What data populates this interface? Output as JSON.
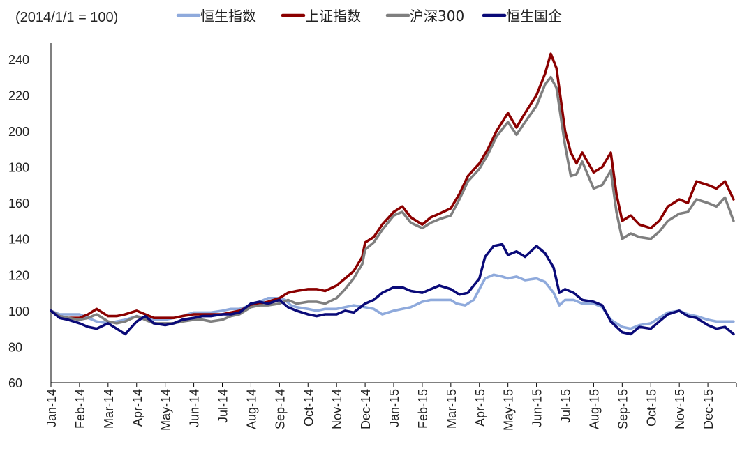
{
  "chart_data": {
    "type": "line",
    "title": "",
    "unit_label": "(2014/1/1 = 100)",
    "xlabel": "",
    "ylabel": "",
    "ylim": [
      60,
      245
    ],
    "yticks": [
      60,
      80,
      100,
      120,
      140,
      160,
      180,
      200,
      220,
      240
    ],
    "grid": false,
    "legend_position": "top",
    "categories": [
      "Jan-14",
      "Feb-14",
      "Mar-14",
      "Apr-14",
      "May-14",
      "Jun-14",
      "Jul-14",
      "Aug-14",
      "Sep-14",
      "Oct-14",
      "Nov-14",
      "Dec-14",
      "Jan-15",
      "Feb-15",
      "Mar-15",
      "Apr-15",
      "May-15",
      "Jun-15",
      "Jul-15",
      "Aug-15",
      "Sep-15",
      "Oct-15",
      "Nov-15",
      "Dec-15"
    ],
    "series": [
      {
        "name": "恒生指数",
        "color": "#8FAADC",
        "points": [
          [
            0,
            100
          ],
          [
            0.3,
            98
          ],
          [
            0.6,
            98
          ],
          [
            1,
            98
          ],
          [
            1.3,
            96
          ],
          [
            1.6,
            94
          ],
          [
            2,
            93
          ],
          [
            2.3,
            94
          ],
          [
            2.6,
            95
          ],
          [
            3,
            97
          ],
          [
            3.3,
            96
          ],
          [
            3.6,
            95
          ],
          [
            4,
            95
          ],
          [
            4.3,
            96
          ],
          [
            4.6,
            97
          ],
          [
            5,
            99
          ],
          [
            5.3,
            99
          ],
          [
            5.6,
            99
          ],
          [
            6,
            100
          ],
          [
            6.3,
            101
          ],
          [
            6.6,
            101
          ],
          [
            7,
            103
          ],
          [
            7.3,
            105
          ],
          [
            7.6,
            107
          ],
          [
            8,
            107
          ],
          [
            8.2,
            106
          ],
          [
            8.4,
            103
          ],
          [
            8.6,
            102
          ],
          [
            9,
            101
          ],
          [
            9.3,
            100
          ],
          [
            9.6,
            101
          ],
          [
            10,
            101
          ],
          [
            10.3,
            102
          ],
          [
            10.6,
            103
          ],
          [
            11,
            102
          ],
          [
            11.3,
            101
          ],
          [
            11.6,
            98
          ],
          [
            12,
            100
          ],
          [
            12.3,
            101
          ],
          [
            12.6,
            102
          ],
          [
            13,
            105
          ],
          [
            13.3,
            106
          ],
          [
            13.6,
            106
          ],
          [
            14,
            106
          ],
          [
            14.2,
            104
          ],
          [
            14.5,
            103
          ],
          [
            14.8,
            106
          ],
          [
            15,
            112
          ],
          [
            15.2,
            118
          ],
          [
            15.5,
            120
          ],
          [
            15.8,
            119
          ],
          [
            16,
            118
          ],
          [
            16.3,
            119
          ],
          [
            16.6,
            117
          ],
          [
            17,
            118
          ],
          [
            17.3,
            116
          ],
          [
            17.6,
            110
          ],
          [
            17.8,
            103
          ],
          [
            18,
            106
          ],
          [
            18.3,
            106
          ],
          [
            18.6,
            104
          ],
          [
            19,
            104
          ],
          [
            19.3,
            102
          ],
          [
            19.6,
            95
          ],
          [
            20,
            91
          ],
          [
            20.3,
            90
          ],
          [
            20.6,
            92
          ],
          [
            21,
            93
          ],
          [
            21.3,
            96
          ],
          [
            21.6,
            99
          ],
          [
            22,
            100
          ],
          [
            22.3,
            98
          ],
          [
            22.6,
            97
          ],
          [
            23,
            95
          ],
          [
            23.3,
            94
          ],
          [
            23.6,
            94
          ],
          [
            23.9,
            94
          ]
        ]
      },
      {
        "name": "上证指数",
        "color": "#8B0000",
        "points": [
          [
            0,
            100
          ],
          [
            0.3,
            97
          ],
          [
            0.6,
            96
          ],
          [
            1,
            96
          ],
          [
            1.3,
            98
          ],
          [
            1.6,
            101
          ],
          [
            2,
            97
          ],
          [
            2.3,
            97
          ],
          [
            2.6,
            98
          ],
          [
            3,
            100
          ],
          [
            3.3,
            98
          ],
          [
            3.6,
            96
          ],
          [
            4,
            96
          ],
          [
            4.3,
            96
          ],
          [
            4.6,
            97
          ],
          [
            5,
            98
          ],
          [
            5.3,
            98
          ],
          [
            5.6,
            98
          ],
          [
            6,
            98
          ],
          [
            6.3,
            99
          ],
          [
            6.6,
            100
          ],
          [
            7,
            103
          ],
          [
            7.3,
            104
          ],
          [
            7.6,
            105
          ],
          [
            8,
            107
          ],
          [
            8.3,
            110
          ],
          [
            8.6,
            111
          ],
          [
            9,
            112
          ],
          [
            9.3,
            112
          ],
          [
            9.6,
            111
          ],
          [
            10,
            114
          ],
          [
            10.3,
            118
          ],
          [
            10.6,
            122
          ],
          [
            10.9,
            130
          ],
          [
            11,
            138
          ],
          [
            11.3,
            141
          ],
          [
            11.6,
            148
          ],
          [
            12,
            155
          ],
          [
            12.3,
            158
          ],
          [
            12.6,
            152
          ],
          [
            13,
            148
          ],
          [
            13.3,
            152
          ],
          [
            13.6,
            154
          ],
          [
            14,
            157
          ],
          [
            14.3,
            165
          ],
          [
            14.6,
            175
          ],
          [
            15,
            182
          ],
          [
            15.3,
            190
          ],
          [
            15.6,
            200
          ],
          [
            16,
            210
          ],
          [
            16.3,
            202
          ],
          [
            16.6,
            210
          ],
          [
            17,
            220
          ],
          [
            17.3,
            232
          ],
          [
            17.5,
            243
          ],
          [
            17.7,
            235
          ],
          [
            18,
            200
          ],
          [
            18.2,
            188
          ],
          [
            18.4,
            182
          ],
          [
            18.6,
            188
          ],
          [
            19,
            177
          ],
          [
            19.3,
            180
          ],
          [
            19.6,
            188
          ],
          [
            19.8,
            165
          ],
          [
            20,
            150
          ],
          [
            20.3,
            153
          ],
          [
            20.6,
            148
          ],
          [
            21,
            146
          ],
          [
            21.3,
            150
          ],
          [
            21.6,
            158
          ],
          [
            22,
            162
          ],
          [
            22.3,
            160
          ],
          [
            22.6,
            172
          ],
          [
            23,
            170
          ],
          [
            23.3,
            168
          ],
          [
            23.6,
            172
          ],
          [
            23.9,
            162
          ]
        ]
      },
      {
        "name": "沪深300",
        "color": "#7F7F7F",
        "points": [
          [
            0,
            100
          ],
          [
            0.3,
            97
          ],
          [
            0.6,
            96
          ],
          [
            1,
            95
          ],
          [
            1.3,
            96
          ],
          [
            1.6,
            98
          ],
          [
            2,
            94
          ],
          [
            2.3,
            93
          ],
          [
            2.6,
            94
          ],
          [
            3,
            97
          ],
          [
            3.3,
            95
          ],
          [
            3.6,
            93
          ],
          [
            4,
            93
          ],
          [
            4.3,
            93
          ],
          [
            4.6,
            94
          ],
          [
            5,
            95
          ],
          [
            5.3,
            95
          ],
          [
            5.6,
            94
          ],
          [
            6,
            95
          ],
          [
            6.3,
            97
          ],
          [
            6.6,
            98
          ],
          [
            7,
            102
          ],
          [
            7.3,
            103
          ],
          [
            7.6,
            103
          ],
          [
            8,
            104
          ],
          [
            8.3,
            106
          ],
          [
            8.6,
            104
          ],
          [
            9,
            105
          ],
          [
            9.3,
            105
          ],
          [
            9.6,
            104
          ],
          [
            10,
            107
          ],
          [
            10.3,
            112
          ],
          [
            10.6,
            118
          ],
          [
            10.9,
            126
          ],
          [
            11,
            134
          ],
          [
            11.3,
            138
          ],
          [
            11.6,
            145
          ],
          [
            12,
            153
          ],
          [
            12.3,
            155
          ],
          [
            12.6,
            149
          ],
          [
            13,
            146
          ],
          [
            13.3,
            149
          ],
          [
            13.6,
            151
          ],
          [
            14,
            153
          ],
          [
            14.3,
            162
          ],
          [
            14.6,
            172
          ],
          [
            15,
            179
          ],
          [
            15.3,
            187
          ],
          [
            15.6,
            197
          ],
          [
            16,
            205
          ],
          [
            16.3,
            198
          ],
          [
            16.6,
            205
          ],
          [
            17,
            214
          ],
          [
            17.3,
            226
          ],
          [
            17.5,
            230
          ],
          [
            17.7,
            224
          ],
          [
            18,
            192
          ],
          [
            18.2,
            175
          ],
          [
            18.4,
            176
          ],
          [
            18.6,
            183
          ],
          [
            19,
            168
          ],
          [
            19.3,
            170
          ],
          [
            19.6,
            178
          ],
          [
            19.8,
            155
          ],
          [
            20,
            140
          ],
          [
            20.3,
            143
          ],
          [
            20.6,
            141
          ],
          [
            21,
            140
          ],
          [
            21.3,
            144
          ],
          [
            21.6,
            150
          ],
          [
            22,
            154
          ],
          [
            22.3,
            155
          ],
          [
            22.6,
            162
          ],
          [
            23,
            160
          ],
          [
            23.3,
            158
          ],
          [
            23.6,
            163
          ],
          [
            23.9,
            150
          ]
        ]
      },
      {
        "name": "恒生国企",
        "color": "#0A0A78",
        "points": [
          [
            0,
            100
          ],
          [
            0.3,
            96
          ],
          [
            0.6,
            95
          ],
          [
            1,
            93
          ],
          [
            1.3,
            91
          ],
          [
            1.6,
            90
          ],
          [
            2,
            93
          ],
          [
            2.3,
            90
          ],
          [
            2.6,
            87
          ],
          [
            3,
            94
          ],
          [
            3.3,
            97
          ],
          [
            3.6,
            93
          ],
          [
            4,
            92
          ],
          [
            4.3,
            93
          ],
          [
            4.6,
            95
          ],
          [
            5,
            96
          ],
          [
            5.3,
            97
          ],
          [
            5.6,
            97
          ],
          [
            6,
            98
          ],
          [
            6.3,
            98
          ],
          [
            6.6,
            99
          ],
          [
            7,
            104
          ],
          [
            7.3,
            105
          ],
          [
            7.6,
            104
          ],
          [
            8,
            106
          ],
          [
            8.3,
            102
          ],
          [
            8.6,
            100
          ],
          [
            9,
            98
          ],
          [
            9.3,
            97
          ],
          [
            9.6,
            98
          ],
          [
            10,
            98
          ],
          [
            10.3,
            100
          ],
          [
            10.6,
            99
          ],
          [
            11,
            104
          ],
          [
            11.3,
            106
          ],
          [
            11.6,
            110
          ],
          [
            12,
            113
          ],
          [
            12.3,
            113
          ],
          [
            12.6,
            111
          ],
          [
            13,
            110
          ],
          [
            13.3,
            112
          ],
          [
            13.6,
            114
          ],
          [
            14,
            112
          ],
          [
            14.3,
            109
          ],
          [
            14.6,
            110
          ],
          [
            15,
            118
          ],
          [
            15.2,
            130
          ],
          [
            15.5,
            136
          ],
          [
            15.8,
            137
          ],
          [
            16,
            131
          ],
          [
            16.3,
            133
          ],
          [
            16.6,
            130
          ],
          [
            17,
            136
          ],
          [
            17.3,
            132
          ],
          [
            17.6,
            124
          ],
          [
            17.8,
            110
          ],
          [
            18,
            112
          ],
          [
            18.3,
            110
          ],
          [
            18.6,
            106
          ],
          [
            19,
            105
          ],
          [
            19.3,
            103
          ],
          [
            19.6,
            94
          ],
          [
            20,
            88
          ],
          [
            20.3,
            87
          ],
          [
            20.6,
            91
          ],
          [
            21,
            90
          ],
          [
            21.3,
            94
          ],
          [
            21.6,
            98
          ],
          [
            22,
            100
          ],
          [
            22.3,
            97
          ],
          [
            22.6,
            96
          ],
          [
            23,
            92
          ],
          [
            23.3,
            90
          ],
          [
            23.6,
            91
          ],
          [
            23.9,
            87
          ]
        ]
      }
    ]
  }
}
